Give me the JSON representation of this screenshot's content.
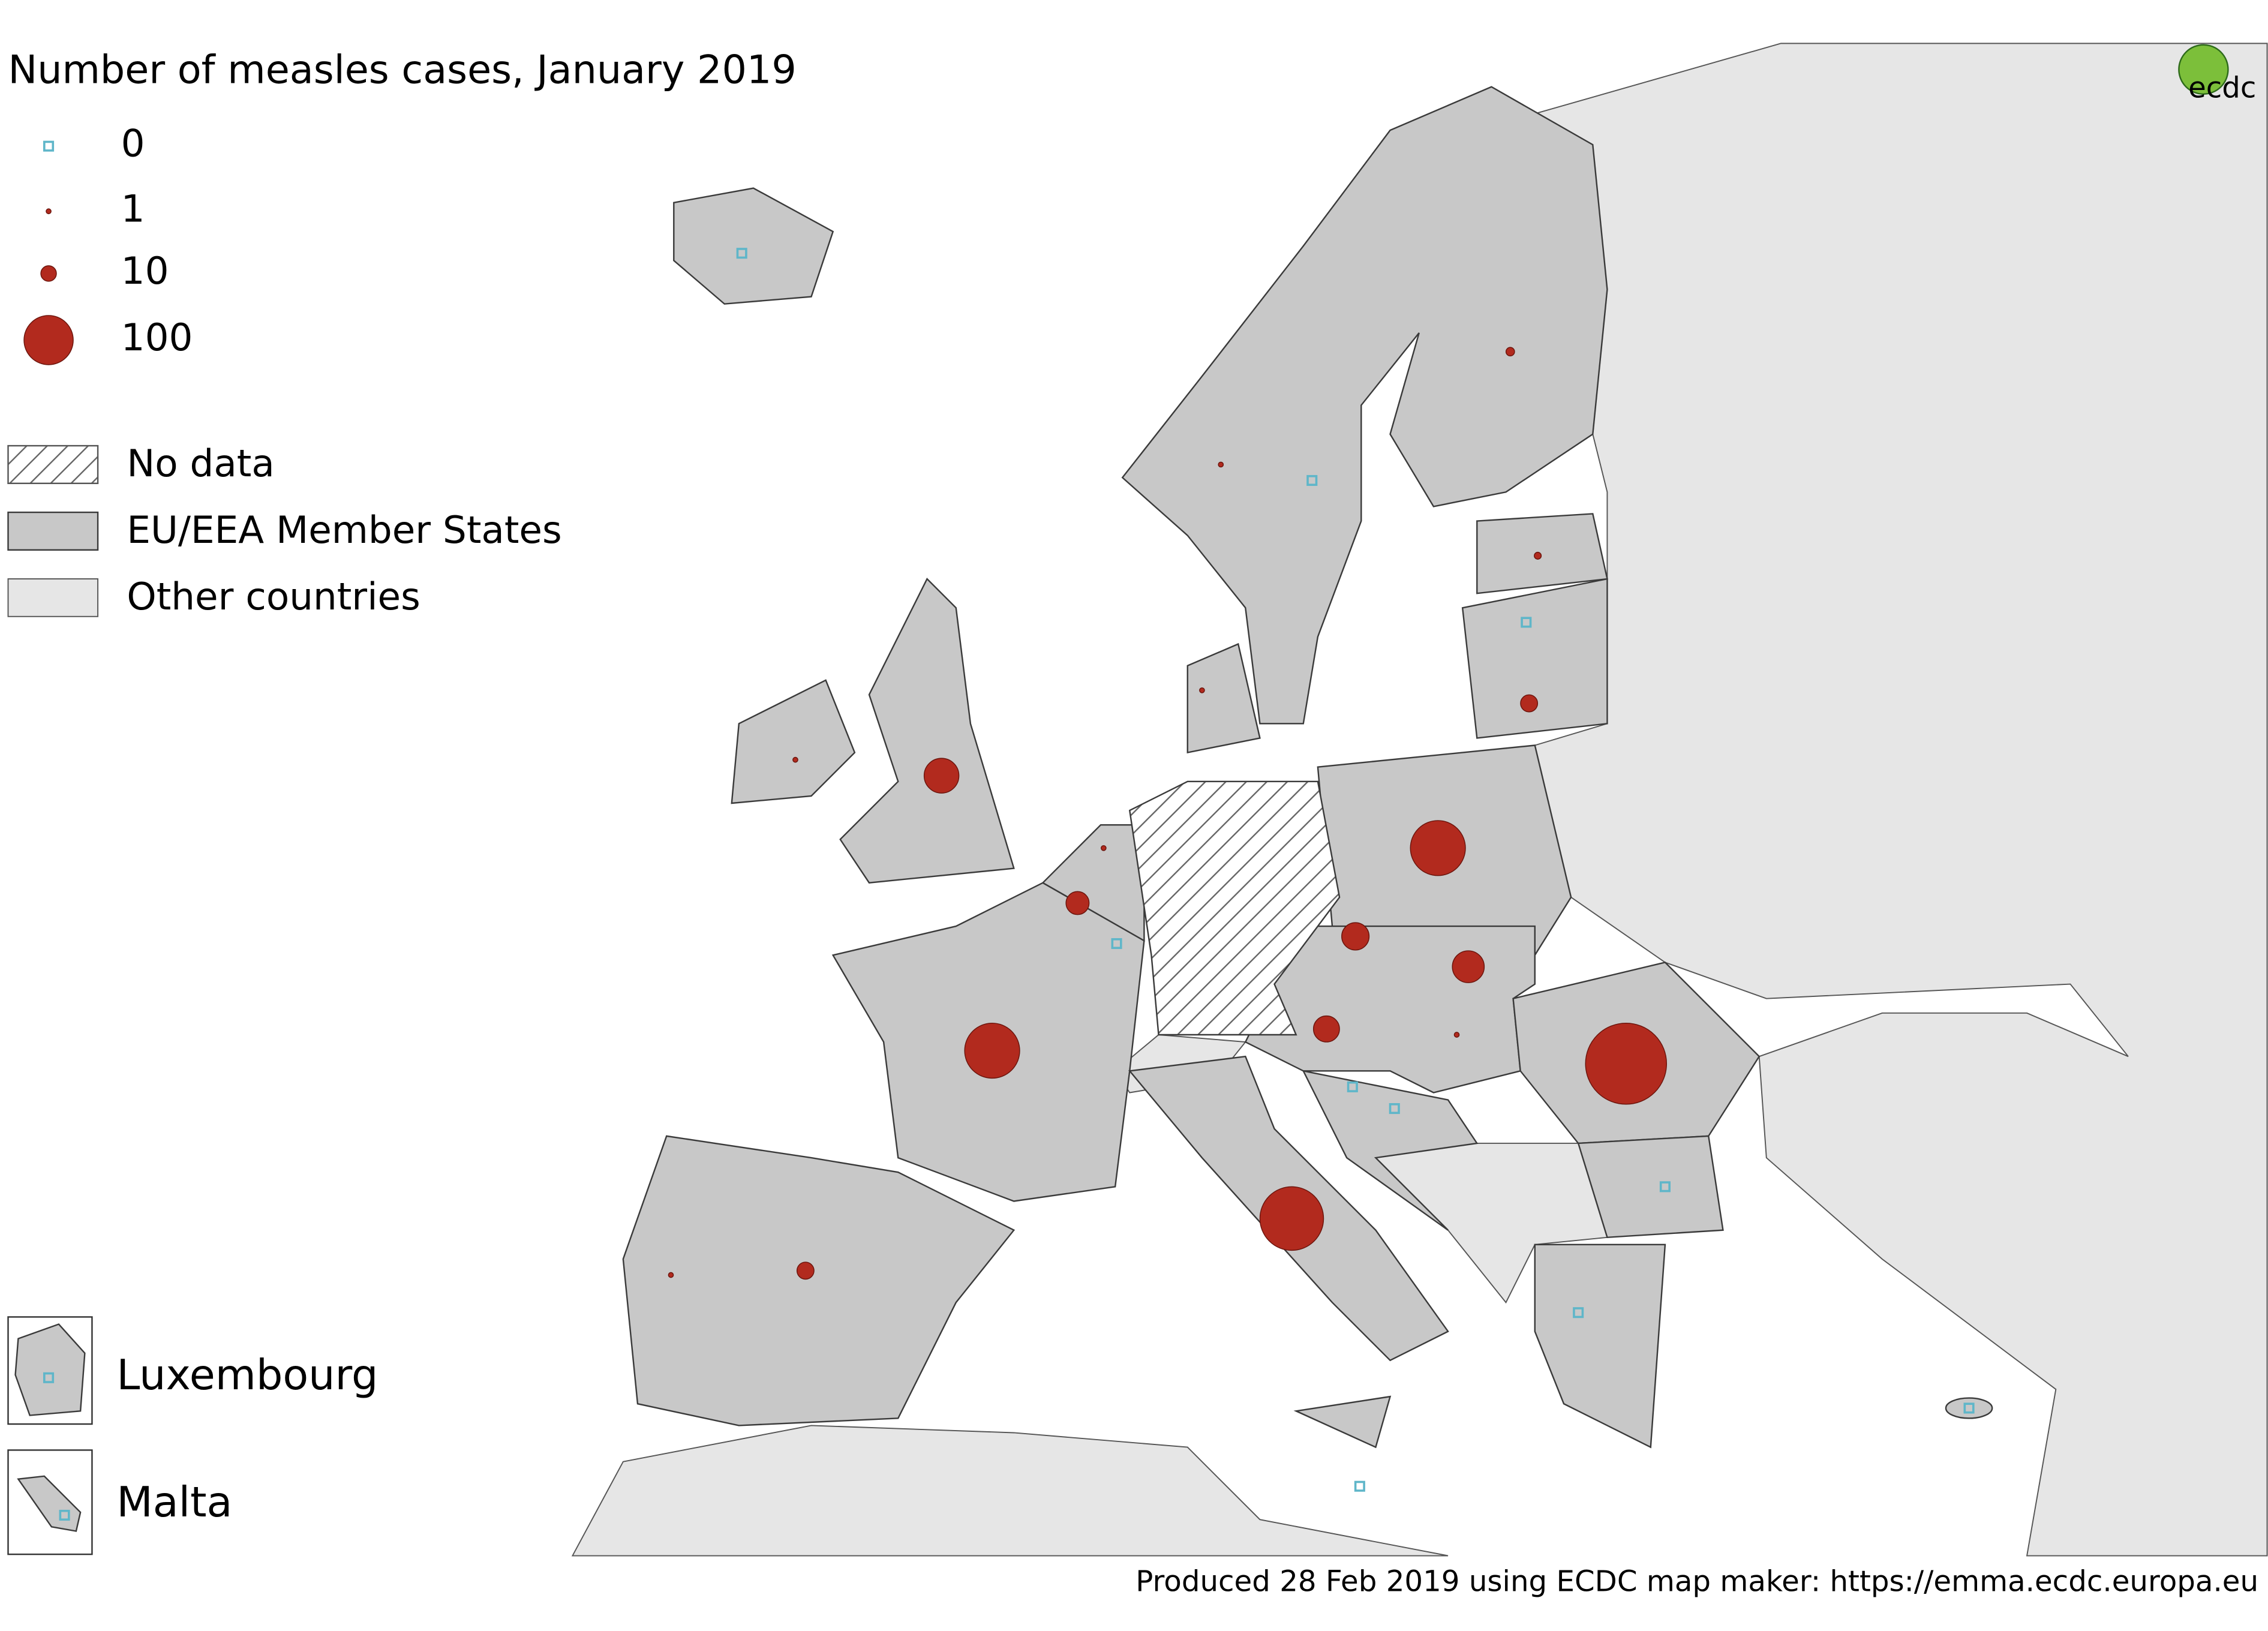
{
  "title": "Number of measles cases, January 2019",
  "legend_values": [
    0,
    1,
    10,
    100
  ],
  "legend_categories": [
    "No data",
    "EU/EEA Member States",
    "Other countries"
  ],
  "insets": [
    "Luxembourg",
    "Malta"
  ],
  "cases": [
    271,
    167,
    125,
    125,
    50,
    42,
    31,
    28,
    22,
    12,
    12,
    3,
    2,
    1,
    1,
    1,
    1,
    1,
    1,
    0,
    0,
    0,
    0,
    0,
    0,
    0,
    0,
    0,
    0
  ],
  "marker_color": "#b22a1e",
  "zero_color": "#5fb6c9",
  "logo": "ecdc",
  "footer": "Produced 28 Feb 2019 using ECDC map maker: https://emma.ecdc.europa.eu"
}
